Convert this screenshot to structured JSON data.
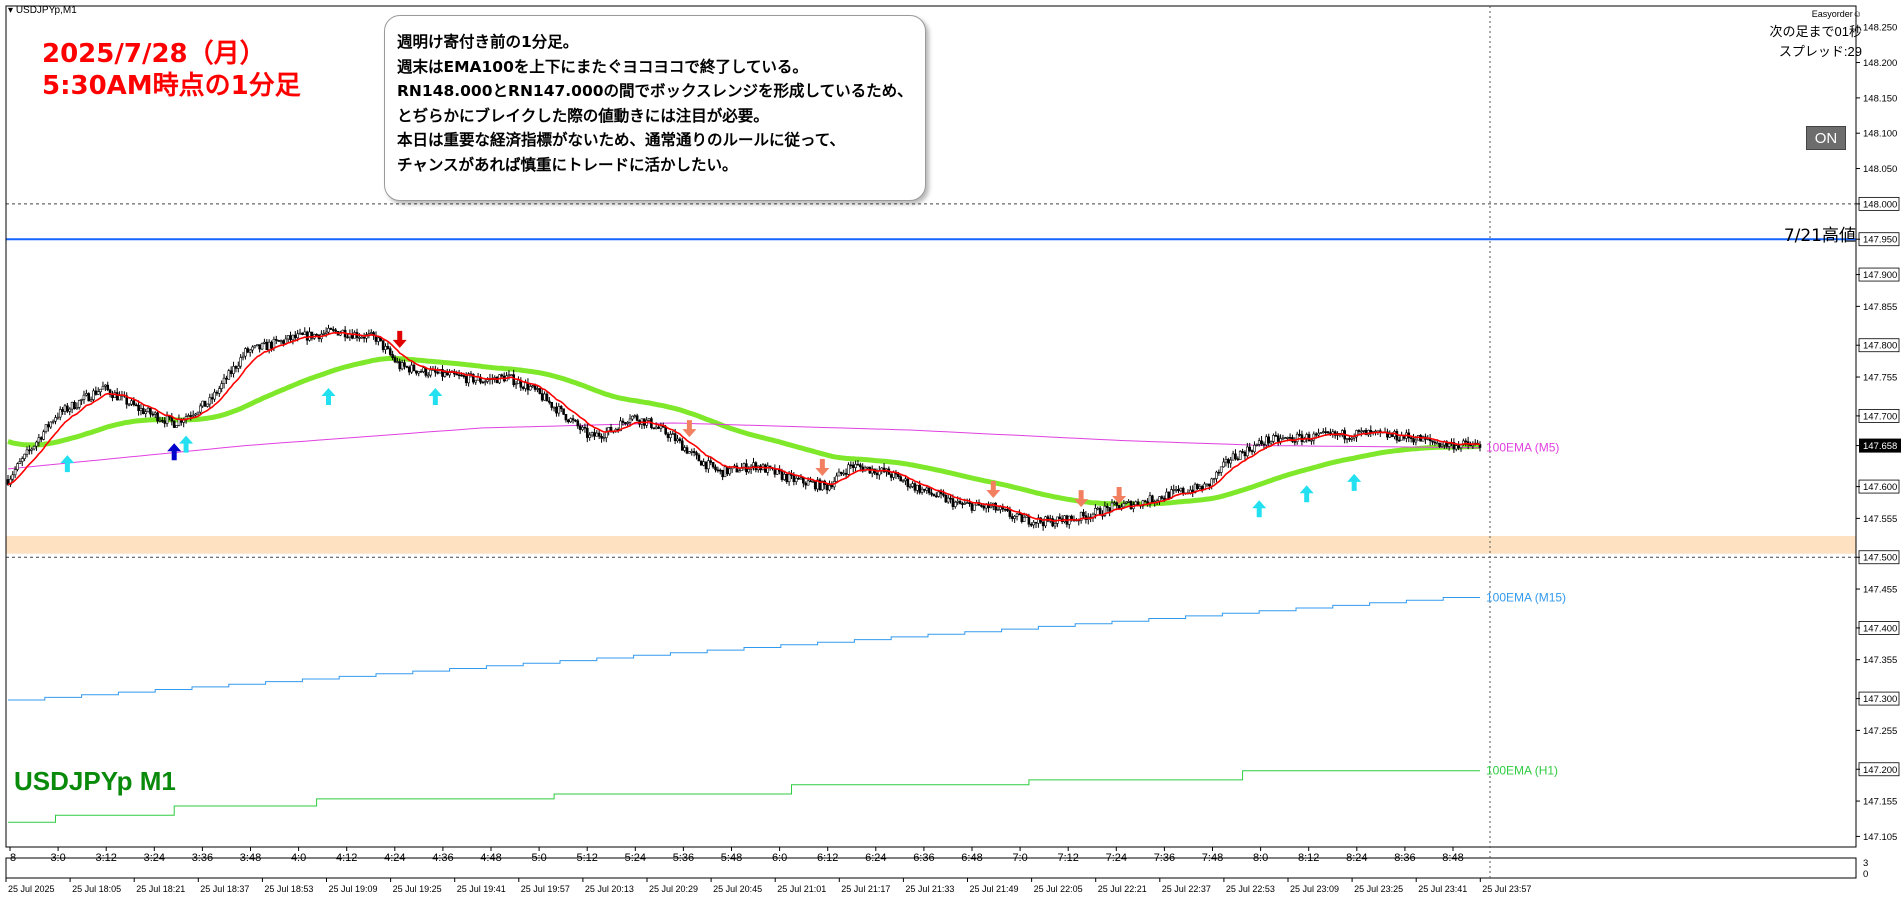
{
  "window": {
    "symbol_tag": "USDJPYp,M1",
    "symbol_label": "USDJPYp M1"
  },
  "annotation": {
    "title_line1": "2025/7/28（月）",
    "title_line2": "5:30AM時点の1分足",
    "box_lines": [
      "週明け寄付き前の1分足。",
      "週末はEMA100を上下にまたぐヨコヨコで終了している。",
      "RN148.000とRN147.000の間でボックスレンジを形成しているため、",
      "とぢらかにブレイクした際の値動きには注目が必要。",
      "本日は重要な経済指標がないため、通常通りのルールに従って、",
      "チャンスがあれば慎重にトレードに活かしたい。"
    ]
  },
  "ea_panel": {
    "name": "Easyorder",
    "next_bar": "次の足まで01秒",
    "spread": "スプレッド:29",
    "on_button": "ON"
  },
  "colors": {
    "ema_fast": "#ff0000",
    "ema100_m1": "#7fe82a",
    "ema100_m5": "#e040e0",
    "ema100_m15": "#3399ee",
    "ema100_h1": "#2ecc40",
    "arrow_up": "#22e0f0",
    "arrow_up_strong": "#0000cc",
    "arrow_down": "#f28060",
    "arrow_down_strong": "#e00000",
    "hline_high": "#1565ff",
    "zone": "#fde1c0",
    "current_price_bg": "#000000"
  },
  "chart_data": {
    "type": "candlestick",
    "symbol": "USDJPYp",
    "timeframe": "M1",
    "ylim": [
      147.09,
      148.28
    ],
    "price_ticks": [
      "148.250",
      "148.200",
      "148.150",
      "148.100",
      "148.050",
      "148.000",
      "147.950",
      "147.900",
      "147.855",
      "147.800",
      "147.755",
      "147.700",
      "147.658",
      "147.600",
      "147.555",
      "147.500",
      "147.455",
      "147.400",
      "147.355",
      "147.300",
      "147.255",
      "147.200",
      "147.155",
      "147.105"
    ],
    "current_price": "147.658",
    "time_ticks": [
      "8",
      "3:0",
      "3:12",
      "3:24",
      "3:36",
      "3:48",
      "4:0",
      "4:12",
      "4:24",
      "4:36",
      "4:48",
      "5:0",
      "5:12",
      "5:24",
      "5:36",
      "5:48",
      "6:0",
      "6:12",
      "6:24",
      "6:36",
      "6:48",
      "7:0",
      "7:12",
      "7:24",
      "7:36",
      "7:48",
      "8:0",
      "8:12",
      "8:24",
      "8:36",
      "8:48"
    ],
    "date_ticks": [
      "25 Jul 2025",
      "25 Jul 18:05",
      "25 Jul 18:21",
      "25 Jul 18:37",
      "25 Jul 18:53",
      "25 Jul 19:09",
      "25 Jul 19:25",
      "25 Jul 19:41",
      "25 Jul 19:57",
      "25 Jul 20:13",
      "25 Jul 20:29",
      "25 Jul 20:45",
      "25 Jul 21:01",
      "25 Jul 21:17",
      "25 Jul 21:33",
      "25 Jul 21:49",
      "25 Jul 22:05",
      "25 Jul 22:21",
      "25 Jul 22:37",
      "25 Jul 22:53",
      "25 Jul 23:09",
      "25 Jul 23:25",
      "25 Jul 23:41",
      "25 Jul 23:57"
    ],
    "horizontal_lines": [
      {
        "price": 148.0,
        "style": "dotted"
      },
      {
        "price": 147.95,
        "style": "solid",
        "label": "7/21高値"
      },
      {
        "price": 147.5,
        "style": "dotted"
      }
    ],
    "zone": {
      "from": 147.505,
      "to": 147.53
    },
    "price_path": [
      [
        0,
        147.61
      ],
      [
        20,
        147.7
      ],
      [
        40,
        147.74
      ],
      [
        55,
        147.71
      ],
      [
        70,
        147.69
      ],
      [
        85,
        147.72
      ],
      [
        100,
        147.79
      ],
      [
        120,
        147.81
      ],
      [
        140,
        147.82
      ],
      [
        155,
        147.81
      ],
      [
        165,
        147.77
      ],
      [
        180,
        147.76
      ],
      [
        200,
        147.75
      ],
      [
        210,
        147.755
      ],
      [
        220,
        147.74
      ],
      [
        235,
        147.7
      ],
      [
        245,
        147.67
      ],
      [
        255,
        147.68
      ],
      [
        262,
        147.7
      ],
      [
        270,
        147.69
      ],
      [
        280,
        147.67
      ],
      [
        290,
        147.64
      ],
      [
        300,
        147.62
      ],
      [
        315,
        147.63
      ],
      [
        330,
        147.61
      ],
      [
        345,
        147.6
      ],
      [
        355,
        147.63
      ],
      [
        370,
        147.62
      ],
      [
        385,
        147.595
      ],
      [
        400,
        147.575
      ],
      [
        415,
        147.57
      ],
      [
        425,
        147.555
      ],
      [
        438,
        147.55
      ],
      [
        450,
        147.555
      ],
      [
        465,
        147.57
      ],
      [
        480,
        147.58
      ],
      [
        490,
        147.59
      ],
      [
        505,
        147.6
      ],
      [
        515,
        147.64
      ],
      [
        530,
        147.665
      ],
      [
        550,
        147.67
      ],
      [
        570,
        147.675
      ],
      [
        590,
        147.67
      ],
      [
        605,
        147.66
      ],
      [
        620,
        147.658
      ]
    ],
    "series": [
      {
        "name": "100EMA (M5)",
        "points": [
          [
            0,
            147.625
          ],
          [
            100,
            147.658
          ],
          [
            200,
            147.683
          ],
          [
            280,
            147.69
          ],
          [
            380,
            147.68
          ],
          [
            470,
            147.665
          ],
          [
            530,
            147.658
          ],
          [
            620,
            147.655
          ]
        ]
      },
      {
        "name": "100EMA (M15)",
        "start": 147.298,
        "end": 147.443
      },
      {
        "name": "100EMA (H1)",
        "steps": [
          [
            0,
            147.125
          ],
          [
            20,
            147.135
          ],
          [
            70,
            147.148
          ],
          [
            130,
            147.158
          ],
          [
            230,
            147.165
          ],
          [
            330,
            147.178
          ],
          [
            430,
            147.185
          ],
          [
            520,
            147.198
          ],
          [
            620,
            147.198
          ]
        ]
      }
    ],
    "markers": [
      {
        "i": 25,
        "dir": "up"
      },
      {
        "i": 70,
        "dir": "up",
        "strong": true
      },
      {
        "i": 75,
        "dir": "up"
      },
      {
        "i": 135,
        "dir": "up"
      },
      {
        "i": 165,
        "dir": "down",
        "strong": true
      },
      {
        "i": 180,
        "dir": "up"
      },
      {
        "i": 287,
        "dir": "down"
      },
      {
        "i": 343,
        "dir": "down"
      },
      {
        "i": 415,
        "dir": "down"
      },
      {
        "i": 452,
        "dir": "down"
      },
      {
        "i": 468,
        "dir": "down"
      },
      {
        "i": 527,
        "dir": "up"
      },
      {
        "i": 547,
        "dir": "up"
      },
      {
        "i": 567,
        "dir": "up"
      }
    ],
    "subwindow": {
      "ticks": [
        "3",
        "0"
      ]
    }
  }
}
